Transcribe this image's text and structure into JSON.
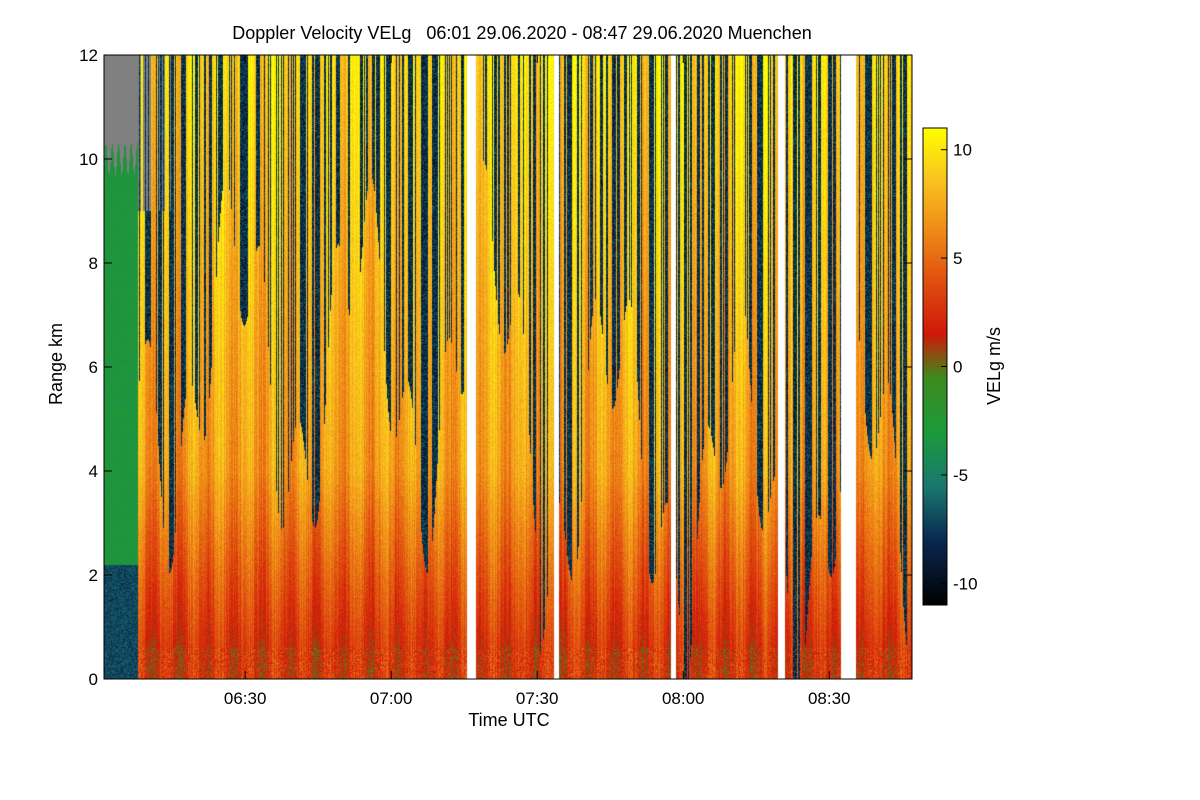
{
  "chart_data": {
    "type": "heatmap",
    "title": "Doppler Velocity VELg   06:01 29.06.2020 - 08:47 29.06.2020 Muenchen",
    "xlabel": "Time UTC",
    "ylabel": "Range km",
    "colorbar_label": "VELg m/s",
    "x_range": [
      "06:01",
      "08:47"
    ],
    "y_range": [
      0,
      12
    ],
    "value_range": [
      -11,
      11
    ],
    "x_ticks": [
      {
        "label": "06:30",
        "minutes": 390
      },
      {
        "label": "07:00",
        "minutes": 420
      },
      {
        "label": "07:30",
        "minutes": 450
      },
      {
        "label": "08:00",
        "minutes": 480
      },
      {
        "label": "08:30",
        "minutes": 510
      }
    ],
    "y_ticks": [
      {
        "label": "0",
        "value": 0
      },
      {
        "label": "2",
        "value": 2
      },
      {
        "label": "4",
        "value": 4
      },
      {
        "label": "6",
        "value": 6
      },
      {
        "label": "8",
        "value": 8
      },
      {
        "label": "10",
        "value": 10
      },
      {
        "label": "12",
        "value": 12
      }
    ],
    "colorbar_ticks": [
      {
        "label": "10",
        "value": 10
      },
      {
        "label": "5",
        "value": 5
      },
      {
        "label": "0",
        "value": 0
      },
      {
        "label": "-5",
        "value": -5
      },
      {
        "label": "-10",
        "value": -10
      }
    ],
    "colormap": [
      {
        "v": -11,
        "color": "#000000"
      },
      {
        "v": -8,
        "color": "#0a2850"
      },
      {
        "v": -5.5,
        "color": "#1a7870"
      },
      {
        "v": -3,
        "color": "#1c9a3a"
      },
      {
        "v": -0.5,
        "color": "#3e8a1e"
      },
      {
        "v": 1.5,
        "color": "#d01808"
      },
      {
        "v": 4,
        "color": "#e05010"
      },
      {
        "v": 6.5,
        "color": "#f09018"
      },
      {
        "v": 8.5,
        "color": "#f8c020"
      },
      {
        "v": 11,
        "color": "#ffff00"
      }
    ],
    "no_signal_color": "#808080",
    "data_gaps_minutes": [
      [
        435.5,
        437.5
      ],
      [
        453.5,
        454.5
      ],
      [
        477.5,
        478.5
      ],
      [
        499.5,
        501.0
      ],
      [
        512.5,
        515.5
      ]
    ],
    "profiles": {
      "note_units": "time in minutes of day UTC, height in km, velocity in m/s",
      "early_period": {
        "time": [
          361,
          368
        ],
        "below_2_2_km": -7,
        "above_2_2_km": -3,
        "top_km": 10
      },
      "main_period": {
        "time": [
          368,
          527
        ],
        "near_ground": 2.5,
        "mid_levels": 7,
        "upper_levels": 9.5,
        "high_altitude_min": -10
      }
    }
  }
}
